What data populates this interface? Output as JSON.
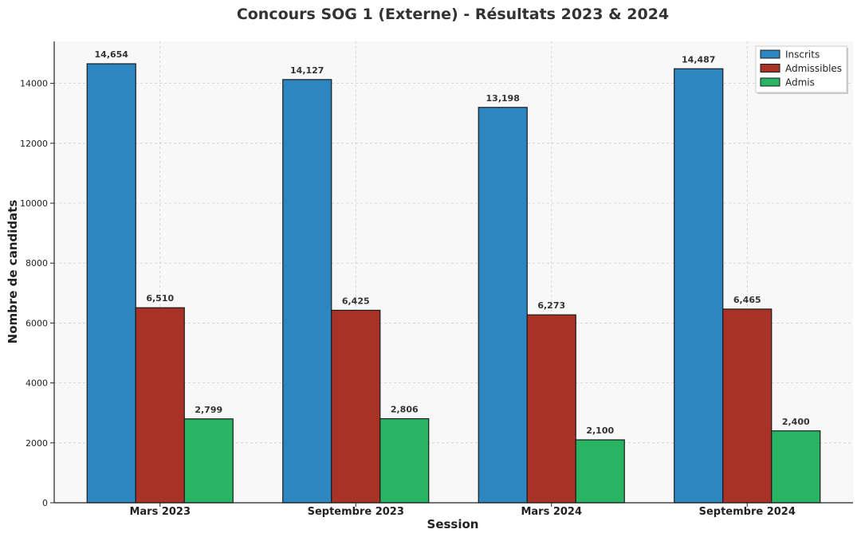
{
  "chart_data": {
    "type": "bar",
    "title": "Concours SOG 1 (Externe) - Résultats 2023 & 2024",
    "xlabel": "Session",
    "ylabel": "Nombre de candidats",
    "categories": [
      "Mars 2023",
      "Septembre 2023",
      "Mars 2024",
      "Septembre 2024"
    ],
    "series": [
      {
        "name": "Inscrits",
        "color": "#2e86c1",
        "values": [
          14654,
          14127,
          13198,
          14487
        ],
        "labels": [
          "14,654",
          "14,127",
          "13,198",
          "14,487"
        ]
      },
      {
        "name": "Admissibles",
        "color": "#a93226",
        "values": [
          6510,
          6425,
          6273,
          6465
        ],
        "labels": [
          "6,510",
          "6,425",
          "6,273",
          "6,465"
        ]
      },
      {
        "name": "Admis",
        "color": "#28b463",
        "values": [
          2799,
          2806,
          2100,
          2400
        ],
        "labels": [
          "2,799",
          "2,806",
          "2,100",
          "2,400"
        ]
      }
    ],
    "ylim": [
      0,
      15400
    ],
    "yticks": [
      0,
      2000,
      4000,
      6000,
      8000,
      10000,
      12000,
      14000
    ],
    "ytick_labels": [
      "0",
      "2000",
      "4000",
      "6000",
      "8000",
      "10000",
      "12000",
      "14000"
    ],
    "grid": true,
    "legend_position": "top-right",
    "background_color": "#f8f8f8"
  }
}
